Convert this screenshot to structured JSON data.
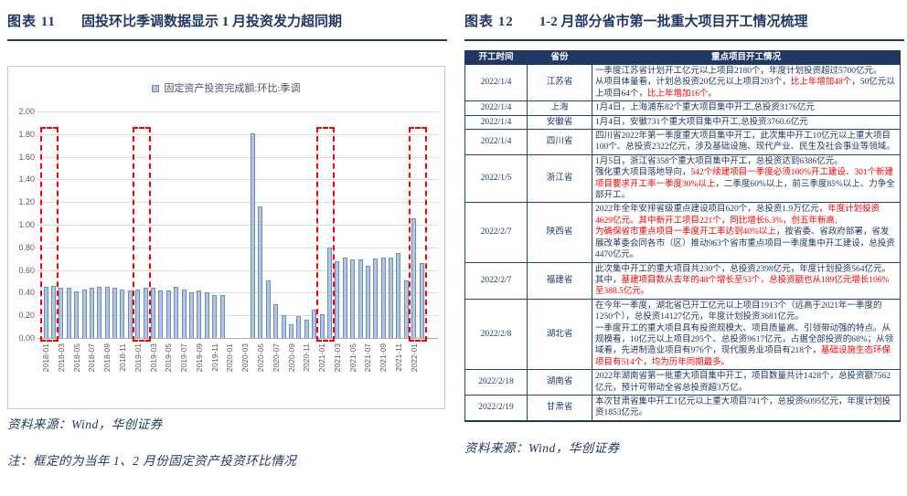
{
  "figure11": {
    "title_label": "图表 11",
    "title_text": "固投环比季调数据显示 1 月投资发力超同期",
    "source": "资料来源：Wind，华创证券",
    "note": "注：框定的为当年 1、2 月份固定资产投资环比情况",
    "chart_data": {
      "type": "bar",
      "legend": "固定资产投资完成额:环比:季调",
      "ylabel": "",
      "ylim": [
        0,
        2.0
      ],
      "ytick_step": 0.2,
      "grid": true,
      "bar_fill": "#B3C6E0",
      "bar_border": "#6C8EBF",
      "highlight_color": "#FF0000",
      "x": [
        "2018-01",
        "2018-02",
        "2018-03",
        "2018-04",
        "2018-05",
        "2018-06",
        "2018-07",
        "2018-08",
        "2018-09",
        "2018-10",
        "2018-11",
        "2018-12",
        "2019-01",
        "2019-02",
        "2019-03",
        "2019-04",
        "2019-05",
        "2019-06",
        "2019-07",
        "2019-08",
        "2019-09",
        "2019-10",
        "2019-11",
        "2019-12",
        "2020-01",
        "2020-02",
        "2020-03",
        "2020-04",
        "2020-05",
        "2020-06",
        "2020-07",
        "2020-08",
        "2020-09",
        "2020-10",
        "2020-11",
        "2020-12",
        "2021-01",
        "2021-02",
        "2021-03",
        "2021-04",
        "2021-05",
        "2021-06",
        "2021-07",
        "2021-08",
        "2021-09",
        "2021-10",
        "2021-11",
        "2021-12",
        "2022-01",
        "2022-02"
      ],
      "values": [
        0.45,
        0.46,
        0.44,
        0.44,
        0.41,
        0.43,
        0.44,
        0.45,
        0.45,
        0.44,
        0.43,
        0.42,
        0.43,
        0.44,
        0.44,
        0.42,
        0.42,
        0.45,
        0.43,
        0.4,
        0.42,
        0.4,
        0.38,
        0.38,
        null,
        null,
        null,
        1.81,
        1.16,
        0.51,
        0.3,
        0.2,
        0.12,
        0.19,
        0.16,
        0.25,
        0.21,
        0.8,
        0.68,
        0.71,
        0.69,
        0.69,
        0.64,
        0.7,
        0.71,
        0.71,
        0.75,
        0.51,
        1.06,
        0.66
      ],
      "highlight_pairs": [
        [
          "2018-01",
          "2018-02"
        ],
        [
          "2019-01",
          "2019-02"
        ],
        [
          "2021-01",
          "2021-02"
        ],
        [
          "2022-01",
          "2022-02"
        ]
      ]
    }
  },
  "figure12": {
    "title_label": "图表 12",
    "title_text": "1-2 月部分省市第一批重大项目开工情况梳理",
    "source": "资料来源：Wind，华创证券",
    "table": {
      "headers": [
        "开工时间",
        "省份",
        "重点项目开工情况"
      ],
      "rows": [
        {
          "date": "2022/1/4",
          "province": "江苏省",
          "segments": [
            [
              "b",
              "一季度江苏省计划开工亿元以上项目2180个，年度计划投资超过5700亿元。\n从项目体量看，计划总投资20亿元以上项目203个，"
            ],
            [
              "r",
              "比上年增加48个"
            ],
            [
              "b",
              "，50亿元以上项目64个，"
            ],
            [
              "r",
              "比上年增加16个"
            ],
            [
              "b",
              "。"
            ]
          ]
        },
        {
          "date": "2022/1/4",
          "province": "上海",
          "segments": [
            [
              "b",
              "1月4日，上海浦东82个重大项目集中开工,总投资3176亿元"
            ]
          ]
        },
        {
          "date": "2022/1/4",
          "province": "安徽省",
          "segments": [
            [
              "b",
              "1月4日，安徽731个重大项目集中开工,总投资3760.6亿元"
            ]
          ]
        },
        {
          "date": "2022/1/4",
          "province": "四川省",
          "segments": [
            [
              "b",
              "四川省2022年第一季度重大项目集中开工，此次集中开工10亿元以上重大项目100个、总投资2322亿元，涉及基础设施、现代产业、民生及社会事业等领域。"
            ]
          ]
        },
        {
          "date": "2022/1/5",
          "province": "浙江省",
          "segments": [
            [
              "b",
              "1月5日，浙江省358个重大项目集中开工，总投资达到6386亿元。\n强化重大项目落地导向，"
            ],
            [
              "r",
              "542个续建项目一季度必须100%开工建设、301个新建项目要求开工率一季度30%以上"
            ],
            [
              "b",
              "，二季度60%以上，前三季度85%以上、力争全部开工。"
            ]
          ]
        },
        {
          "date": "2022/2/7",
          "province": "陕西省",
          "segments": [
            [
              "b",
              "2022年全年安排省级重点建设项目620个，总投资1.9万亿元，"
            ],
            [
              "r",
              "年度计划投资4629亿元。其中新开工项目221个，同比增长6.3%，创五年新高;"
            ],
            [
              "b",
              "\n"
            ],
            [
              "r",
              "为确保省市重点项目一季度开工率达到40%以上"
            ],
            [
              "b",
              "，按省委、省政府部署，省发展改革委会同各市（区）推动963个省市重点项目一季度集中开工建设，总投资4470亿元。"
            ]
          ]
        },
        {
          "date": "2022/2/7",
          "province": "福建省",
          "segments": [
            [
              "b",
              "此次集中开工的重大项目共230个，总投资2398亿元，年度计划投资564亿元。其中，"
            ],
            [
              "r",
              "基建项目数从去年的48个增长至53个，总投资额也从189亿元增长106%至388.5亿元。"
            ]
          ]
        },
        {
          "date": "2022/2/8",
          "province": "湖北省",
          "segments": [
            [
              "b",
              "在今年一季度，湖北省已开工亿元以上项目1913个（远高于2021年一季度的1250个），总投资14127亿元，年度计划投资3681亿元。\n一季度开工的重大项目具有投资规模大、项目质量高、引领带动强的特点。从规模看，10亿元以上项目295个、总投资9617亿元，占据全部投资的68%；从领域看，先进制造业项目有976个，现代服务业项目有218个，"
            ],
            [
              "r",
              "基础设施生态环保项目有514个，均为历年同期最多。"
            ]
          ]
        },
        {
          "date": "2022/2/18",
          "province": "湖南省",
          "segments": [
            [
              "b",
              "2022年湖南省第一批重大项目集中开工，项目数量共计1428个，总投资额7562亿元，预计可带动全省总投资超3万亿。"
            ]
          ]
        },
        {
          "date": "2022/2/19",
          "province": "甘肃省",
          "segments": [
            [
              "b",
              "本次甘肃省集中开工1亿元以上重大项目741个，总投资6095亿元，年度计划投资1853亿元。"
            ]
          ]
        }
      ]
    }
  }
}
